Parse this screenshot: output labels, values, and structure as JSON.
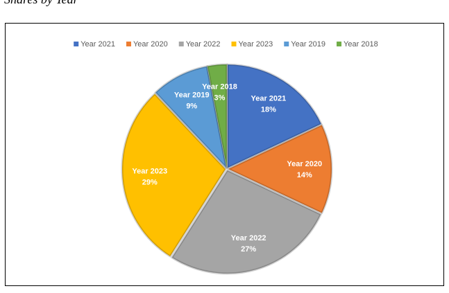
{
  "caption": "Shares by Year",
  "chart_data": {
    "type": "pie",
    "categories": [
      "Year 2021",
      "Year 2020",
      "Year 2022",
      "Year 2023",
      "Year 2019",
      "Year 2018"
    ],
    "values": [
      18,
      14,
      27,
      29,
      9,
      3
    ],
    "value_labels": [
      "18%",
      "14%",
      "27%",
      "29%",
      "9%",
      "3%"
    ],
    "colors": [
      "#4472c4",
      "#ed7d31",
      "#a5a5a5",
      "#ffc000",
      "#5b9bd5",
      "#70ad47"
    ],
    "legend": "top"
  }
}
